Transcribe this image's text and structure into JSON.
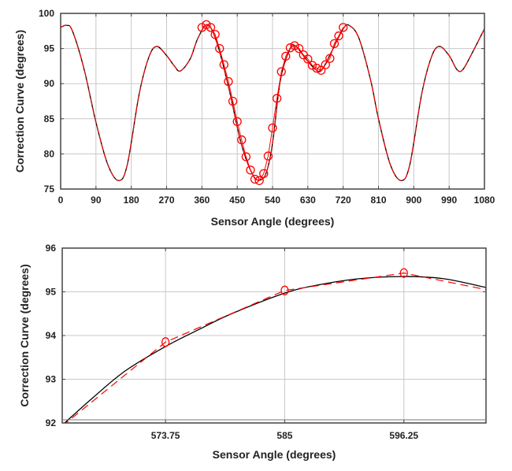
{
  "chart_data": [
    {
      "type": "line",
      "title": "",
      "xlabel": "Sensor Angle (degrees)",
      "ylabel": "Correction Curve (degrees)",
      "xlim": [
        0,
        1080
      ],
      "ylim": [
        75,
        100
      ],
      "xticks": [
        0,
        90,
        180,
        270,
        360,
        450,
        540,
        630,
        720,
        810,
        900,
        990,
        1080
      ],
      "yticks": [
        75,
        80,
        85,
        90,
        95,
        100
      ],
      "grid": true,
      "legend": null,
      "series": [
        {
          "name": "continuous curve",
          "style": "solid",
          "color": "#000000",
          "x": [
            0,
            15,
            30,
            60,
            90,
            120,
            148,
            170,
            200,
            225,
            245,
            270,
            290,
            305,
            330,
            350,
            375,
            400,
            430,
            460,
            490,
            510,
            525,
            540,
            560,
            585,
            600,
            625,
            650,
            665,
            690,
            720,
            735,
            760,
            790,
            810,
            840,
            868,
            890,
            920,
            945,
            965,
            990,
            1010,
            1025,
            1050,
            1080
          ],
          "y": [
            98.0,
            98.3,
            97.5,
            92.0,
            84.5,
            78.5,
            76.2,
            78.5,
            88.5,
            93.8,
            95.3,
            94.0,
            92.5,
            91.8,
            93.5,
            96.5,
            98.4,
            95.5,
            89.0,
            81.5,
            77.0,
            76.3,
            77.5,
            81.5,
            90.5,
            95.0,
            95.3,
            93.5,
            92.0,
            91.9,
            94.5,
            97.8,
            98.3,
            96.5,
            90.5,
            85.0,
            78.5,
            76.2,
            78.5,
            88.5,
            93.8,
            95.3,
            94.0,
            92.0,
            92.0,
            94.5,
            97.8
          ]
        },
        {
          "name": "sampled points",
          "style": "circle-markers-solid",
          "color": "#ff0000",
          "x": [
            360,
            371.25,
            382.5,
            393.75,
            405,
            416.25,
            427.5,
            438.75,
            450,
            461.25,
            472.5,
            483.75,
            495,
            506.25,
            517.5,
            528.75,
            540,
            551.25,
            562.5,
            573.75,
            585,
            596.25,
            607.5,
            618.75,
            630,
            641.25,
            652.5,
            663.75,
            675,
            686.25,
            697.5,
            708.75,
            720
          ],
          "y": [
            98.0,
            98.4,
            98.0,
            97.0,
            95.0,
            92.7,
            90.3,
            87.5,
            84.6,
            82.0,
            79.6,
            77.7,
            76.4,
            76.2,
            77.2,
            79.7,
            83.7,
            87.9,
            91.7,
            93.9,
            95.1,
            95.4,
            95.0,
            94.1,
            93.5,
            92.6,
            92.2,
            91.9,
            92.7,
            93.6,
            95.7,
            96.8,
            98.0
          ]
        }
      ]
    },
    {
      "type": "line",
      "title": "",
      "xlabel": "Sensor Angle (degrees)",
      "ylabel": "Correction Curve (degrees)",
      "xlim": [
        564,
        604
      ],
      "ylim": [
        92,
        96
      ],
      "xticks": [
        573.75,
        585,
        596.25
      ],
      "yticks": [
        92,
        93,
        94,
        95,
        96
      ],
      "grid": true,
      "legend": null,
      "series": [
        {
          "name": "continuous curve",
          "style": "solid",
          "color": "#000000",
          "x": [
            564,
            567,
            570,
            573.75,
            577,
            580,
            585,
            588,
            592,
            596.25,
            600,
            604
          ],
          "y": [
            91.95,
            92.6,
            93.2,
            93.75,
            94.15,
            94.5,
            94.97,
            95.15,
            95.3,
            95.35,
            95.3,
            95.1
          ]
        },
        {
          "name": "sampled points (linear interpolation)",
          "style": "dashed-with-circle-markers",
          "color": "#ff0000",
          "x": [
            564,
            573.75,
            585,
            596.25,
            604
          ],
          "y": [
            91.93,
            93.85,
            95.03,
            95.43,
            95.05
          ]
        }
      ]
    }
  ]
}
